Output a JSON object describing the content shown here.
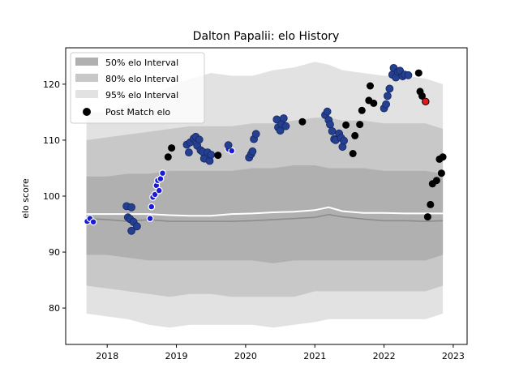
{
  "chart_data": {
    "type": "scatter",
    "title": "Dalton Papalii: elo History",
    "xlabel": "",
    "ylabel": "elo score",
    "xlim": [
      2017.4,
      2023.2
    ],
    "ylim": [
      73.5,
      126.5
    ],
    "x_ticks": [
      "2018",
      "2019",
      "2020",
      "2021",
      "2022",
      "2023"
    ],
    "y_ticks": [
      "80",
      "90",
      "100",
      "110",
      "120"
    ],
    "grid": false,
    "legend_position": "top-left",
    "legend": [
      {
        "label": "50% elo Interval",
        "color": "#b0b0b0"
      },
      {
        "label": "80% elo Interval",
        "color": "#c8c8c8"
      },
      {
        "label": "95% elo Interval",
        "color": "#e2e2e2"
      },
      {
        "label": "Post Match elo",
        "color": "#000000"
      }
    ],
    "bands": {
      "x": [
        2017.7,
        2018.0,
        2018.3,
        2018.6,
        2018.9,
        2019.2,
        2019.5,
        2019.8,
        2020.1,
        2020.4,
        2020.7,
        2021.0,
        2021.2,
        2021.4,
        2021.7,
        2022.0,
        2022.3,
        2022.6,
        2022.85
      ],
      "p95_low": [
        79,
        78.5,
        78,
        77,
        76.5,
        77,
        77,
        77,
        77,
        76.5,
        77,
        77.5,
        78,
        78,
        78,
        78,
        78,
        78,
        79
      ],
      "p95_high": [
        115,
        115,
        116.5,
        118,
        119.5,
        121,
        122,
        121.5,
        121.5,
        122.5,
        123,
        124,
        123.5,
        122.5,
        122,
        121.5,
        121.5,
        121,
        120
      ],
      "p80_low": [
        84,
        83.5,
        83,
        82.5,
        82,
        82.5,
        82.5,
        82,
        82,
        82,
        82,
        83,
        83,
        83,
        83,
        83,
        83,
        83,
        84
      ],
      "p80_high": [
        110,
        110.5,
        111,
        111.5,
        112,
        112.5,
        112.5,
        112.5,
        113,
        113,
        113.5,
        114,
        114,
        113.5,
        113.5,
        113,
        113,
        113,
        112
      ],
      "p50_low": [
        89.5,
        89.5,
        89,
        88.5,
        88.5,
        88.5,
        88.5,
        88.5,
        88.5,
        88,
        88.5,
        88.5,
        88.5,
        88.5,
        88.5,
        88.5,
        88.5,
        88.5,
        89.5
      ],
      "p50_high": [
        103.5,
        103.5,
        104,
        104,
        104.5,
        104.5,
        104.5,
        104.5,
        105,
        105,
        105.5,
        105.5,
        105,
        105,
        105,
        104.5,
        104.5,
        104.5,
        104
      ],
      "median": [
        96,
        95.8,
        95.5,
        95.8,
        95.5,
        95.5,
        95.5,
        95.5,
        95.6,
        95.8,
        96,
        96.2,
        96.7,
        96.3,
        95.9,
        95.6,
        95.6,
        95.5,
        95.6
      ],
      "mean": [
        96.8,
        96.8,
        96.8,
        96.8,
        96.6,
        96.5,
        96.5,
        96.8,
        96.9,
        97.1,
        97.2,
        97.5,
        98,
        97.3,
        97,
        97,
        96.9,
        96.9,
        96.9
      ]
    },
    "series": [
      {
        "style": "white",
        "color": "#1a1adb",
        "points": [
          [
            2017.71,
            95.5
          ],
          [
            2017.75,
            96.0
          ],
          [
            2017.8,
            95.4
          ],
          [
            2018.62,
            96.0
          ],
          [
            2018.64,
            98.1
          ],
          [
            2018.66,
            99.8
          ],
          [
            2018.69,
            100.3
          ],
          [
            2018.71,
            101.9
          ],
          [
            2018.73,
            102.8
          ],
          [
            2018.75,
            101.0
          ],
          [
            2018.77,
            103.1
          ],
          [
            2018.8,
            104.1
          ],
          [
            2019.75,
            108.4
          ],
          [
            2019.8,
            108.1
          ]
        ]
      },
      {
        "style": "blue",
        "color": "#24408e",
        "points": [
          [
            2018.28,
            98.2
          ],
          [
            2018.3,
            96.2
          ],
          [
            2018.33,
            95.9
          ],
          [
            2018.35,
            98.0
          ],
          [
            2018.38,
            95.4
          ],
          [
            2018.43,
            94.6
          ],
          [
            2018.35,
            93.8
          ],
          [
            2019.15,
            109.2
          ],
          [
            2019.18,
            107.8
          ],
          [
            2019.2,
            109.6
          ],
          [
            2019.25,
            110.3
          ],
          [
            2019.28,
            110.6
          ],
          [
            2019.3,
            109.0
          ],
          [
            2019.33,
            110.1
          ],
          [
            2019.35,
            108.2
          ],
          [
            2019.38,
            107.9
          ],
          [
            2019.4,
            106.7
          ],
          [
            2019.45,
            107.8
          ],
          [
            2019.48,
            106.3
          ],
          [
            2019.5,
            107.4
          ],
          [
            2019.75,
            109.1
          ],
          [
            2020.05,
            106.9
          ],
          [
            2020.08,
            107.5
          ],
          [
            2020.1,
            108.0
          ],
          [
            2020.12,
            110.2
          ],
          [
            2020.15,
            111.1
          ],
          [
            2020.45,
            113.7
          ],
          [
            2020.47,
            112.3
          ],
          [
            2020.5,
            111.7
          ],
          [
            2020.52,
            112.9
          ],
          [
            2020.55,
            113.9
          ],
          [
            2020.58,
            112.5
          ],
          [
            2021.15,
            114.5
          ],
          [
            2021.18,
            115.1
          ],
          [
            2021.2,
            113.6
          ],
          [
            2021.22,
            112.8
          ],
          [
            2021.25,
            111.6
          ],
          [
            2021.28,
            110.2
          ],
          [
            2021.3,
            110.0
          ],
          [
            2021.35,
            111.2
          ],
          [
            2021.38,
            110.4
          ],
          [
            2021.4,
            108.8
          ],
          [
            2021.42,
            109.9
          ],
          [
            2022.0,
            115.7
          ],
          [
            2022.03,
            116.4
          ],
          [
            2022.05,
            117.9
          ],
          [
            2022.08,
            119.2
          ],
          [
            2022.12,
            121.7
          ],
          [
            2022.14,
            122.9
          ],
          [
            2022.17,
            121.2
          ],
          [
            2022.2,
            122.2
          ],
          [
            2022.23,
            122.4
          ],
          [
            2022.27,
            121.4
          ],
          [
            2022.3,
            121.7
          ],
          [
            2022.35,
            121.6
          ]
        ]
      },
      {
        "style": "black",
        "color": "#000000",
        "points": [
          [
            2018.88,
            107.0
          ],
          [
            2018.93,
            108.6
          ],
          [
            2019.6,
            107.3
          ],
          [
            2020.82,
            113.3
          ],
          [
            2021.45,
            112.7
          ],
          [
            2021.55,
            107.6
          ],
          [
            2021.58,
            110.8
          ],
          [
            2021.65,
            112.8
          ],
          [
            2021.68,
            115.3
          ],
          [
            2021.78,
            117.1
          ],
          [
            2021.8,
            119.7
          ],
          [
            2021.85,
            116.6
          ],
          [
            2022.5,
            122.0
          ],
          [
            2022.52,
            118.7
          ],
          [
            2022.55,
            117.9
          ],
          [
            2022.63,
            96.3
          ],
          [
            2022.67,
            98.5
          ],
          [
            2022.7,
            102.2
          ],
          [
            2022.76,
            102.8
          ],
          [
            2022.8,
            106.6
          ],
          [
            2022.83,
            104.1
          ],
          [
            2022.85,
            107.0
          ]
        ]
      },
      {
        "style": "red",
        "color": "#e01b1b",
        "points": [
          [
            2022.6,
            116.9
          ]
        ]
      }
    ]
  }
}
